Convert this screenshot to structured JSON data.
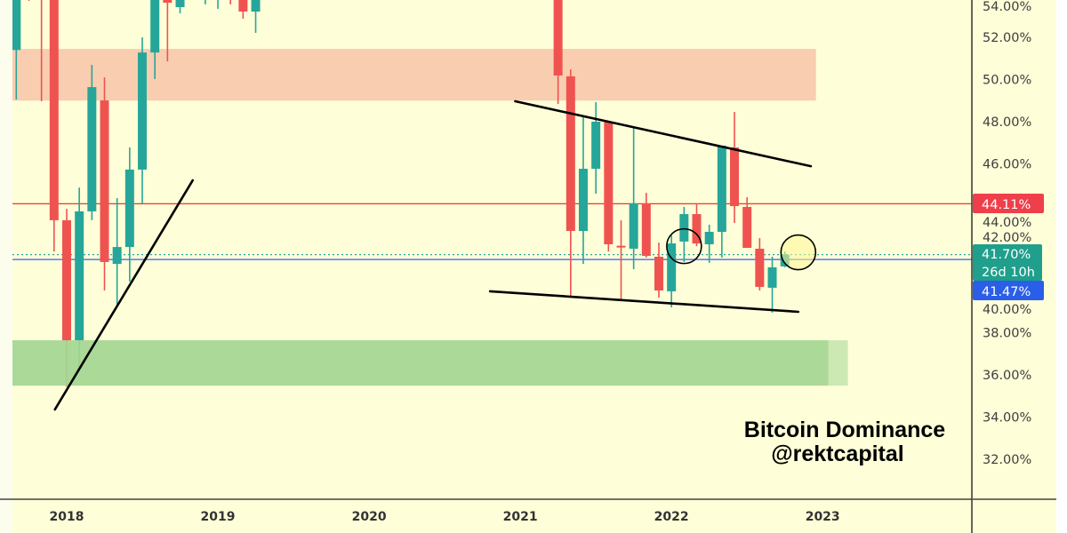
{
  "chart_data": {
    "type": "candlestick",
    "title": "Bitcoin Dominance",
    "subtitle": "@rektcapital",
    "interval": "monthly",
    "y_axis": {
      "ylim": [
        31,
        53.77
      ],
      "position": "right",
      "tick_labels": [
        "54.00%",
        "52.00%",
        "50.00%",
        "48.00%",
        "46.00%",
        "44.00%",
        "42.00%",
        "40.00%",
        "38.00%",
        "36.00%",
        "34.00%",
        "32.00%"
      ],
      "tick_values": [
        54,
        52,
        50,
        48,
        46,
        44,
        42,
        40,
        38,
        36,
        34,
        32
      ]
    },
    "x_axis": {
      "tick_labels": [
        "2018",
        "2019",
        "2020",
        "2021",
        "2022",
        "2023"
      ],
      "tick_dates": [
        "2018-01",
        "2019-01",
        "2020-01",
        "2021-01",
        "2022-01",
        "2023-01"
      ]
    },
    "grid": false,
    "colors": {
      "background": "#fefed8",
      "up": "#26a69a",
      "down": "#ef5350",
      "resistance_zone": "#f9cdb0",
      "support_zone": "#a3d692",
      "support_zone_ext": "#c8e6b0",
      "red_line": "#e53935",
      "blue_line": "#2962ff",
      "current_line": "#26a69a",
      "trendline": "#000000"
    },
    "candles": [
      {
        "date": "2017-09",
        "o": 51.4,
        "h": 56.0,
        "l": 49.05,
        "c": 55.0
      },
      {
        "date": "2017-10",
        "o": 56.0,
        "h": 57.0,
        "l": 53.73,
        "c": 55.5
      },
      {
        "date": "2017-11",
        "o": 58.0,
        "h": 59.0,
        "l": 48.97,
        "c": 55.5
      },
      {
        "date": "2017-12",
        "o": 55.0,
        "h": 56.0,
        "l": 41.85,
        "c": 43.33
      },
      {
        "date": "2018-01",
        "o": 43.33,
        "h": 43.87,
        "l": 35.45,
        "c": 37.64
      },
      {
        "date": "2018-02",
        "o": 37.64,
        "h": 44.88,
        "l": 36.38,
        "c": 43.75
      },
      {
        "date": "2018-03",
        "o": 43.75,
        "h": 50.69,
        "l": 43.33,
        "c": 49.64
      },
      {
        "date": "2018-04",
        "o": 49.01,
        "h": 50.1,
        "l": 40.0,
        "c": 41.35
      },
      {
        "date": "2018-05",
        "o": 41.26,
        "h": 44.38,
        "l": 39.33,
        "c": 42.06
      },
      {
        "date": "2018-06",
        "o": 42.06,
        "h": 46.78,
        "l": 40.42,
        "c": 45.73
      },
      {
        "date": "2018-07",
        "o": 45.73,
        "h": 52.0,
        "l": 44.13,
        "c": 51.28
      },
      {
        "date": "2018-08",
        "o": 51.28,
        "h": 55.5,
        "l": 50.02,
        "c": 54.5
      },
      {
        "date": "2018-09",
        "o": 54.2,
        "h": 55.0,
        "l": 50.86,
        "c": 53.64
      },
      {
        "date": "2018-10",
        "o": 53.43,
        "h": 54.6,
        "l": 53.14,
        "c": 54.0
      },
      {
        "date": "2018-12",
        "o": 54.5,
        "h": 55.5,
        "l": 53.56,
        "c": 55.0
      },
      {
        "date": "2019-01",
        "o": 54.5,
        "h": 55.5,
        "l": 53.35,
        "c": 55.0
      },
      {
        "date": "2019-02",
        "o": 55.0,
        "h": 55.5,
        "l": 53.56,
        "c": 54.5
      },
      {
        "date": "2019-03",
        "o": 55.0,
        "h": 55.5,
        "l": 52.88,
        "c": 53.22
      },
      {
        "date": "2019-04",
        "o": 53.22,
        "h": 56.0,
        "l": 52.21,
        "c": 55.0
      },
      {
        "date": "2021-04",
        "o": 55.0,
        "h": 56.0,
        "l": 48.84,
        "c": 50.19
      },
      {
        "date": "2021-05",
        "o": 50.15,
        "h": 50.48,
        "l": 39.75,
        "c": 42.82
      },
      {
        "date": "2021-06",
        "o": 42.82,
        "h": 48.25,
        "l": 41.26,
        "c": 45.77
      },
      {
        "date": "2021-07",
        "o": 45.77,
        "h": 48.93,
        "l": 44.59,
        "c": 48.0
      },
      {
        "date": "2021-08",
        "o": 48.0,
        "h": 48.0,
        "l": 41.85,
        "c": 42.19
      },
      {
        "date": "2021-09",
        "o": 42.12,
        "h": 43.33,
        "l": 39.54,
        "c": 42.05
      },
      {
        "date": "2021-10",
        "o": 41.98,
        "h": 47.71,
        "l": 41.01,
        "c": 44.13
      },
      {
        "date": "2021-11",
        "o": 44.13,
        "h": 44.63,
        "l": 41.56,
        "c": 41.64
      },
      {
        "date": "2021-12",
        "o": 41.6,
        "h": 42.27,
        "l": 39.66,
        "c": 40.0
      },
      {
        "date": "2022-01",
        "o": 39.96,
        "h": 42.6,
        "l": 39.2,
        "c": 42.23
      },
      {
        "date": "2022-02",
        "o": 42.32,
        "h": 43.96,
        "l": 41.35,
        "c": 43.62
      },
      {
        "date": "2022-03",
        "o": 43.62,
        "h": 44.13,
        "l": 42.1,
        "c": 42.23
      },
      {
        "date": "2022-04",
        "o": 42.19,
        "h": 43.12,
        "l": 41.31,
        "c": 42.78
      },
      {
        "date": "2022-05",
        "o": 42.78,
        "h": 46.86,
        "l": 41.56,
        "c": 46.86
      },
      {
        "date": "2022-06",
        "o": 46.78,
        "h": 48.46,
        "l": 43.2,
        "c": 44.0
      },
      {
        "date": "2022-07",
        "o": 43.96,
        "h": 44.42,
        "l": 42.02,
        "c": 42.02
      },
      {
        "date": "2022-08",
        "o": 41.98,
        "h": 42.48,
        "l": 40.0,
        "c": 40.17
      },
      {
        "date": "2022-09",
        "o": 40.13,
        "h": 41.6,
        "l": 38.95,
        "c": 41.1
      },
      {
        "date": "2022-10",
        "o": 41.14,
        "h": 41.85,
        "l": 41.1,
        "c": 41.7
      }
    ],
    "zones": [
      {
        "kind": "resistance",
        "from": 49.0,
        "to": 51.45,
        "start": "2017-08",
        "end": "2022-12-15"
      },
      {
        "kind": "support",
        "from": 35.49,
        "to": 37.64,
        "start": "2017-08",
        "end": "2023-01-15"
      },
      {
        "kind": "support-ext",
        "from": 35.49,
        "to": 37.64,
        "start": "2023-01-15",
        "end": "2023-03-01"
      }
    ],
    "horizontal_lines": [
      {
        "kind": "red",
        "value": 44.11,
        "label": "44.11%"
      },
      {
        "kind": "current",
        "value": 41.7,
        "label": "41.70%",
        "countdown": "26d 10h"
      },
      {
        "kind": "blue",
        "value": 41.47,
        "label": "41.47%"
      }
    ],
    "trendlines": [
      {
        "name": "rising-support",
        "start": {
          "date": "2017-12-03",
          "v": 34.36
        },
        "end": {
          "date": "2018-11-01",
          "v": 45.22
        }
      },
      {
        "name": "upper-wedge",
        "start": {
          "date": "2020-12-19",
          "v": 48.97
        },
        "end": {
          "date": "2022-12-03",
          "v": 45.89
        }
      },
      {
        "name": "lower-wedge",
        "start": {
          "date": "2020-10-19",
          "v": 39.96
        },
        "end": {
          "date": "2022-11-03",
          "v": 38.99
        }
      }
    ],
    "circles": [
      {
        "date": "2022-02-01",
        "v": 42.1,
        "filled": false
      },
      {
        "date": "2022-11-03",
        "v": 41.81,
        "filled": true
      }
    ]
  }
}
